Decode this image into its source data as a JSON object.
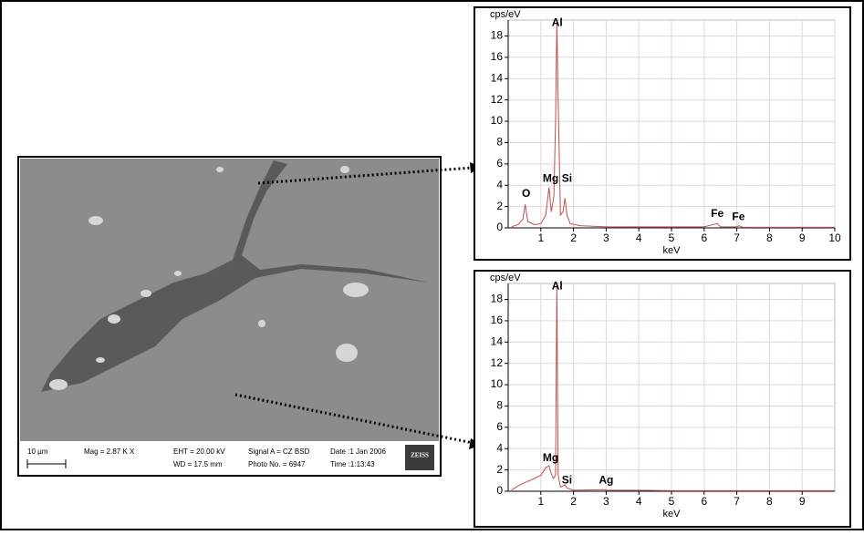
{
  "micrograph": {
    "scale": "10 µm",
    "mag": "Mag = 2.87 K X",
    "eht": "EHT = 20.00 kV",
    "wd": "WD = 17.5 mm",
    "signal": "Signal A = CZ BSD",
    "photo": "Photo No. = 6947",
    "date": "Date :1 Jan 2006",
    "time": "Time :1:13:43",
    "brand": "ZEISS"
  },
  "chart_data": [
    {
      "type": "line",
      "ylabel": "cps/eV",
      "xlabel": "keV",
      "color": "#c0504d",
      "grid": true,
      "xlim": [
        0,
        10
      ],
      "ylim": [
        0,
        19.5
      ],
      "xticks": [
        1,
        2,
        3,
        4,
        5,
        6,
        7,
        8,
        9,
        10
      ],
      "yticks": [
        0,
        2,
        4,
        6,
        8,
        10,
        12,
        14,
        16,
        18
      ],
      "x": [
        0.1,
        0.3,
        0.45,
        0.52,
        0.6,
        0.8,
        1.0,
        1.15,
        1.25,
        1.32,
        1.4,
        1.45,
        1.49,
        1.53,
        1.6,
        1.68,
        1.74,
        1.8,
        1.9,
        2.2,
        3,
        4,
        5,
        6,
        6.4,
        6.5,
        7,
        7.06,
        7.2,
        8,
        9,
        10
      ],
      "values": [
        0.1,
        0.3,
        0.8,
        2.2,
        0.6,
        0.3,
        0.4,
        1.2,
        3.8,
        1.5,
        3,
        10,
        19.4,
        12,
        1.2,
        1.5,
        2.8,
        1.2,
        0.4,
        0.2,
        0.1,
        0.1,
        0.1,
        0.1,
        0.4,
        0.1,
        0.1,
        0.2,
        0.05,
        0.05,
        0.05,
        0.05
      ],
      "annotations": [
        {
          "text": "Al",
          "x": 1.5,
          "y": 19.2
        },
        {
          "text": "O",
          "x": 0.55,
          "y": 3.2
        },
        {
          "text": "Mg",
          "x": 1.3,
          "y": 4.6
        },
        {
          "text": "Si",
          "x": 1.8,
          "y": 4.6
        },
        {
          "text": "Fe",
          "x": 6.4,
          "y": 1.3
        },
        {
          "text": "Fe",
          "x": 7.05,
          "y": 1.0
        }
      ]
    },
    {
      "type": "line",
      "ylabel": "cps/eV",
      "xlabel": "keV",
      "color": "#c0504d",
      "grid": true,
      "xlim": [
        0,
        10
      ],
      "ylim": [
        0,
        19.5
      ],
      "xticks": [
        1,
        2,
        3,
        4,
        5,
        6,
        7,
        8,
        9
      ],
      "yticks": [
        0,
        2,
        4,
        6,
        8,
        10,
        12,
        14,
        16,
        18
      ],
      "x": [
        0.1,
        0.3,
        0.5,
        0.8,
        1.0,
        1.15,
        1.25,
        1.3,
        1.38,
        1.45,
        1.49,
        1.53,
        1.6,
        1.74,
        1.8,
        2,
        2.98,
        3,
        4,
        5,
        6,
        7,
        8,
        9,
        10
      ],
      "values": [
        0.1,
        0.5,
        0.8,
        1.2,
        1.5,
        2.2,
        2.4,
        1.8,
        1.2,
        1.5,
        19.4,
        1.5,
        0.4,
        0.6,
        0.3,
        0.1,
        0.15,
        0.1,
        0.1,
        0.05,
        0.05,
        0.05,
        0.05,
        0.05,
        0.05
      ],
      "annotations": [
        {
          "text": "Al",
          "x": 1.5,
          "y": 19.2
        },
        {
          "text": "Mg",
          "x": 1.3,
          "y": 3.1
        },
        {
          "text": "Si",
          "x": 1.8,
          "y": 1.0
        },
        {
          "text": "Ag",
          "x": 3.0,
          "y": 1.0
        }
      ]
    }
  ]
}
